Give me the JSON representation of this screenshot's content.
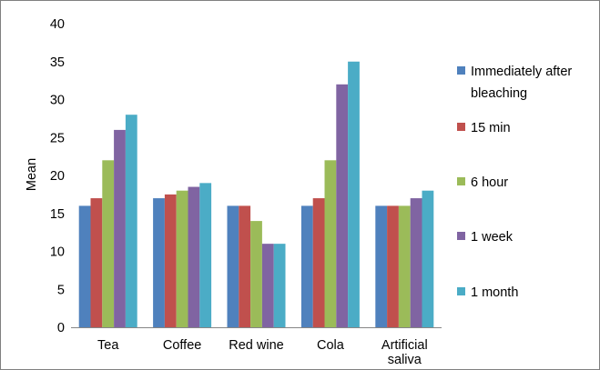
{
  "chart_data": {
    "type": "bar",
    "title": "",
    "xlabel": "",
    "ylabel": "Mean",
    "ylim": [
      0,
      40
    ],
    "yticks": [
      0,
      5,
      10,
      15,
      20,
      25,
      30,
      35,
      40
    ],
    "grid": false,
    "legend_position": "right",
    "categories": [
      [
        "Tea"
      ],
      [
        "Coffee"
      ],
      [
        "Red wine"
      ],
      [
        "Cola"
      ],
      [
        "Artificial",
        "saliva"
      ]
    ],
    "series": [
      {
        "name": [
          "Immediately after",
          "bleaching"
        ],
        "color": "#4F81BD",
        "values": [
          16,
          17,
          16,
          16,
          16
        ]
      },
      {
        "name": [
          "15 min"
        ],
        "color": "#C0504D",
        "values": [
          17,
          17.5,
          16,
          17,
          16
        ]
      },
      {
        "name": [
          "6 hour"
        ],
        "color": "#9BBB59",
        "values": [
          22,
          18,
          14,
          22,
          16
        ]
      },
      {
        "name": [
          "1 week"
        ],
        "color": "#8064A2",
        "values": [
          26,
          18.5,
          11,
          32,
          17
        ]
      },
      {
        "name": [
          "1 month"
        ],
        "color": "#4BACC6",
        "values": [
          28,
          19,
          11,
          35,
          18
        ]
      }
    ]
  }
}
